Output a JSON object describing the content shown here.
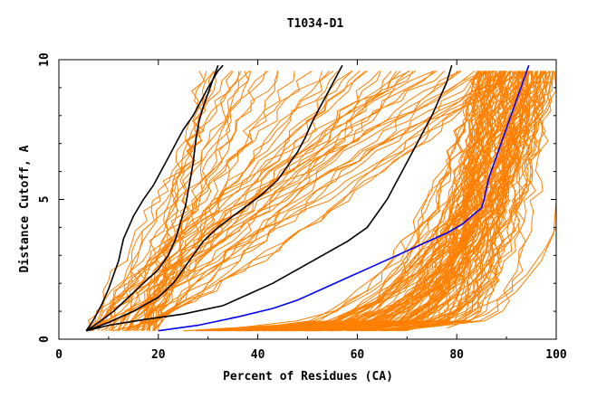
{
  "chart_data": {
    "type": "line",
    "title": "T1034-D1",
    "xlabel": "Percent of Residues (CA)",
    "ylabel": "Distance Cutoff, A",
    "xlim": [
      0,
      100
    ],
    "ylim": [
      0,
      10
    ],
    "x_ticks": [
      "0",
      "20",
      "40",
      "60",
      "80",
      "100"
    ],
    "y_ticks": [
      "0",
      "5",
      "10"
    ],
    "colors": {
      "background_models": "#ff8000",
      "highlight_black": "#000000",
      "highlight_blue": "#0000ff",
      "frame": "#000000"
    },
    "highlight_series": [
      {
        "color": "#000000",
        "x": [
          5.5,
          7,
          8.5,
          10,
          11,
          12,
          12.5,
          13,
          14,
          15,
          17,
          19,
          20.5,
          22,
          23.5,
          25,
          27,
          28.5,
          30,
          31,
          32,
          33
        ],
        "y": [
          0.3,
          0.7,
          1.2,
          1.8,
          2.3,
          2.8,
          3.2,
          3.6,
          4.0,
          4.4,
          5.0,
          5.5,
          6.0,
          6.5,
          7.0,
          7.5,
          8.0,
          8.5,
          9.0,
          9.3,
          9.6,
          9.8
        ]
      },
      {
        "color": "#000000",
        "x": [
          5.5,
          8,
          11,
          14,
          17,
          20,
          22,
          23.5,
          24.5,
          25.5,
          26,
          26.5,
          27,
          27.3,
          27.7,
          28.2,
          29,
          30,
          31,
          32
        ],
        "y": [
          0.3,
          0.6,
          1.0,
          1.5,
          2.0,
          2.5,
          3.0,
          3.6,
          4.2,
          4.8,
          5.3,
          5.8,
          6.3,
          6.8,
          7.3,
          7.8,
          8.3,
          8.8,
          9.3,
          9.8
        ]
      },
      {
        "color": "#000000",
        "x": [
          5.5,
          10,
          15,
          20,
          23,
          25,
          27,
          29,
          32,
          35,
          38,
          41,
          44,
          46,
          48,
          49.5,
          51,
          52.5,
          54,
          55.5,
          57
        ],
        "y": [
          0.3,
          0.6,
          1.0,
          1.5,
          2.0,
          2.5,
          3.0,
          3.5,
          4.0,
          4.4,
          4.8,
          5.2,
          5.7,
          6.2,
          6.7,
          7.2,
          7.8,
          8.3,
          8.8,
          9.3,
          9.8
        ]
      },
      {
        "color": "#000000",
        "x": [
          5.5,
          10,
          17,
          25,
          33,
          38,
          43,
          48,
          53,
          58,
          62,
          64,
          66,
          67.5,
          69,
          70.5,
          72,
          73.5,
          75,
          76.5,
          78,
          79
        ],
        "y": [
          0.3,
          0.5,
          0.7,
          0.9,
          1.2,
          1.6,
          2.0,
          2.5,
          3.0,
          3.5,
          4.0,
          4.5,
          5.0,
          5.5,
          6.0,
          6.5,
          7.0,
          7.5,
          8.0,
          8.6,
          9.2,
          9.8
        ]
      },
      {
        "color": "#0000ff",
        "x": [
          20,
          28,
          36,
          43,
          48,
          53,
          58,
          63,
          68,
          73,
          78,
          81,
          83,
          85,
          85.5,
          86,
          86.5,
          87.5,
          88.5,
          89.5,
          90.5,
          91.5,
          92.5,
          93.5,
          94.5
        ],
        "y": [
          0.3,
          0.5,
          0.8,
          1.1,
          1.4,
          1.8,
          2.2,
          2.6,
          3.0,
          3.4,
          3.8,
          4.1,
          4.4,
          4.7,
          5.0,
          5.4,
          5.8,
          6.3,
          6.8,
          7.3,
          7.8,
          8.3,
          8.8,
          9.3,
          9.8
        ]
      }
    ]
  }
}
